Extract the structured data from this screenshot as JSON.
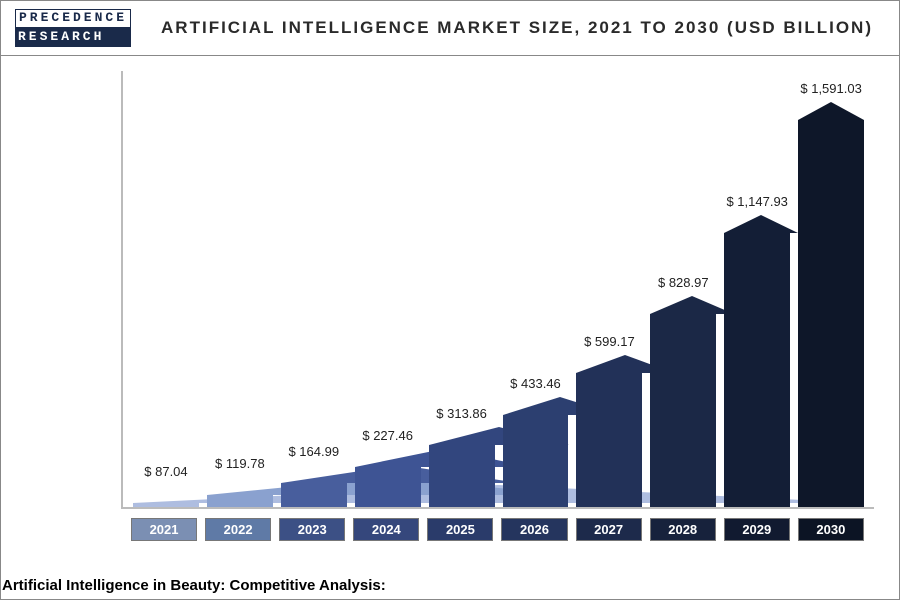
{
  "logo": {
    "line1": "PRECEDENCE",
    "line2": "RESEARCH"
  },
  "title": "ARTIFICIAL INTELLIGENCE MARKET SIZE, 2021 TO 2030 (USD BILLION)",
  "chart": {
    "type": "bar",
    "ymax": 1591.03,
    "background": "#ffffff",
    "axis_color": "#bbbbbb",
    "tip_height": 18,
    "value_prefix": "$ ",
    "value_fontsize": 13,
    "xlabel_fontsize": 13,
    "xlabel_text_color": "#ffffff",
    "bars": [
      {
        "year": "2021",
        "value": 87.04,
        "color": "#aebde0",
        "xlabel_bg": "#7b8fb3"
      },
      {
        "year": "2022",
        "value": 119.78,
        "color": "#8aa1cf",
        "xlabel_bg": "#5f7aa6"
      },
      {
        "year": "2023",
        "value": 164.99,
        "color": "#485e9d",
        "xlabel_bg": "#3c5085"
      },
      {
        "year": "2024",
        "value": 227.46,
        "color": "#3e5494",
        "xlabel_bg": "#35477c"
      },
      {
        "year": "2025",
        "value": 313.86,
        "color": "#32467e",
        "xlabel_bg": "#2a3b6a"
      },
      {
        "year": "2026",
        "value": 433.46,
        "color": "#2c3f70",
        "xlabel_bg": "#25355e"
      },
      {
        "year": "2027",
        "value": 599.17,
        "color": "#223158",
        "xlabel_bg": "#1d2a4b"
      },
      {
        "year": "2028",
        "value": 828.97,
        "color": "#1b2846",
        "xlabel_bg": "#17223c"
      },
      {
        "year": "2029",
        "value": 1147.93,
        "color": "#131e36",
        "xlabel_bg": "#111a30"
      },
      {
        "year": "2030",
        "value": 1591.03,
        "color": "#0e1729",
        "xlabel_bg": "#0c1424"
      }
    ]
  },
  "caption": "Artificial Intelligence in Beauty: Competitive Analysis:"
}
